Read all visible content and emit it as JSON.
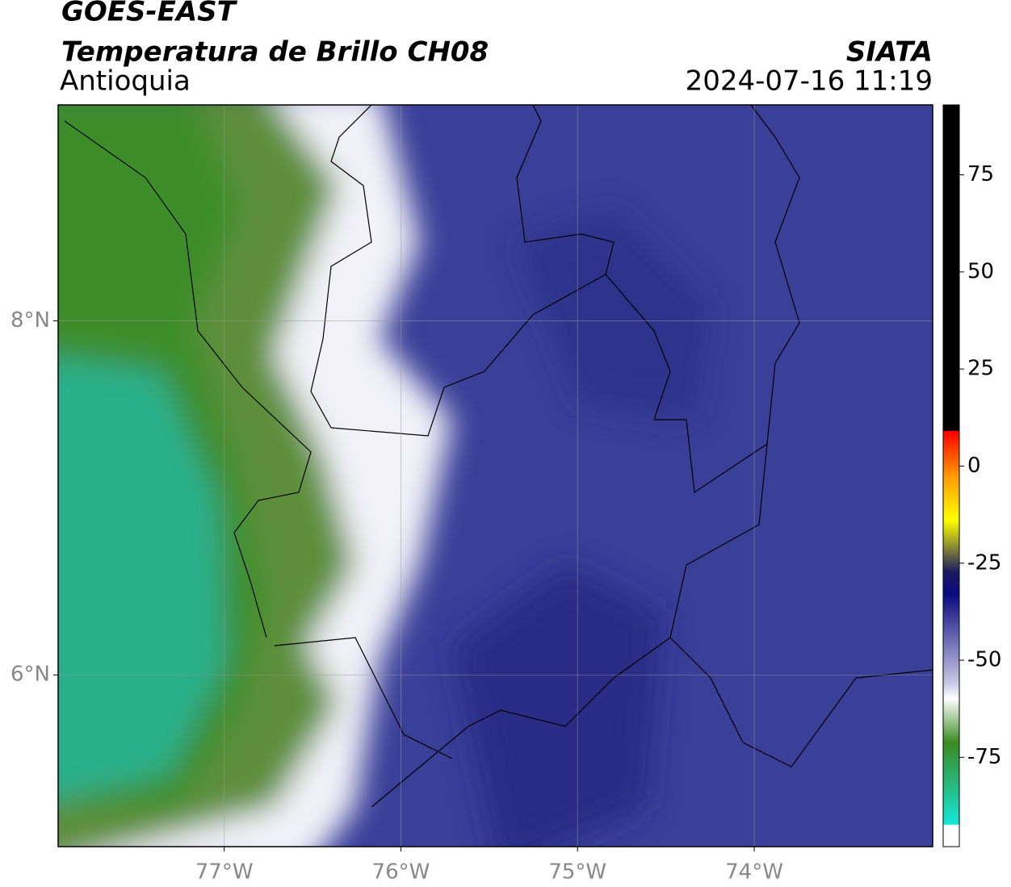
{
  "header": {
    "title": "GOES-EAST",
    "subtitle": "Temperatura de Brillo CH08",
    "region": "Antioquia",
    "source": "SIATA",
    "datetime": "2024-07-16 11:19"
  },
  "map": {
    "xlim": [
      -77.94,
      -72.99
    ],
    "ylim": [
      5.03,
      9.22
    ],
    "xticks": [
      {
        "value": -77,
        "label": "77°W"
      },
      {
        "value": -76,
        "label": "76°W"
      },
      {
        "value": -75,
        "label": "75°W"
      },
      {
        "value": -74,
        "label": "74°W"
      }
    ],
    "yticks": [
      {
        "value": 8,
        "label": "8°N"
      },
      {
        "value": 6,
        "label": "6°N"
      }
    ]
  },
  "colorbar": {
    "lim": [
      -98,
      93
    ],
    "ticks": [
      75,
      50,
      25,
      0,
      -25,
      -50,
      -75
    ]
  }
}
